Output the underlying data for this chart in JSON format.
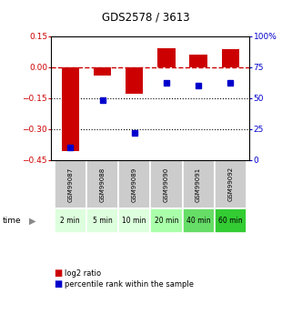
{
  "title": "GDS2578 / 3613",
  "samples": [
    "GSM99087",
    "GSM99088",
    "GSM99089",
    "GSM99090",
    "GSM99091",
    "GSM99092"
  ],
  "times": [
    "2 min",
    "5 min",
    "10 min",
    "20 min",
    "40 min",
    "60 min"
  ],
  "log2_ratio": [
    -0.405,
    -0.04,
    -0.13,
    0.09,
    0.06,
    0.085
  ],
  "percentile_rank": [
    10,
    48,
    22,
    62,
    60,
    62
  ],
  "ylim_left": [
    -0.45,
    0.15
  ],
  "ylim_right": [
    0,
    100
  ],
  "yticks_left": [
    0.15,
    0,
    -0.15,
    -0.3,
    -0.45
  ],
  "yticks_right": [
    100,
    75,
    50,
    25,
    0
  ],
  "bar_color": "#cc0000",
  "dot_color": "#0000cc",
  "zero_line_color": "#cc0000",
  "time_colors": [
    "#ddffdd",
    "#ddffdd",
    "#ddffdd",
    "#aaffaa",
    "#66dd66",
    "#33cc33"
  ],
  "sample_bg": "#cccccc",
  "legend_bar_label": "log2 ratio",
  "legend_dot_label": "percentile rank within the sample"
}
